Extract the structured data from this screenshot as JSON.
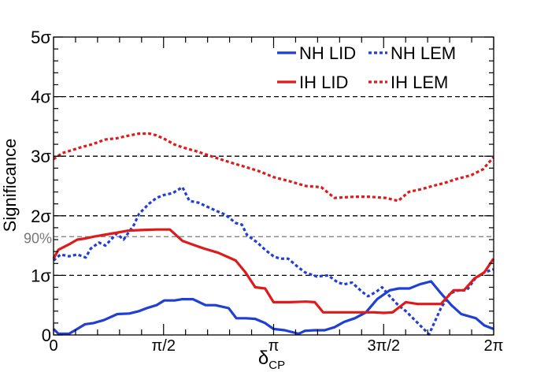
{
  "chart_data": {
    "type": "line",
    "ylabel": "Significance",
    "xlabel_main": "δ",
    "xlabel_sub": "CP",
    "xlim": [
      0,
      6.2832
    ],
    "ylim": [
      0,
      5
    ],
    "x_ticks": [
      {
        "value": 0,
        "label": "0"
      },
      {
        "value": 1.5708,
        "label": "π/2"
      },
      {
        "value": 3.1416,
        "label": "π"
      },
      {
        "value": 4.7124,
        "label": "3π/2"
      },
      {
        "value": 6.2832,
        "label": "2π"
      }
    ],
    "y_ticks": [
      {
        "value": 0,
        "label": "0"
      },
      {
        "value": 1,
        "label": "1σ"
      },
      {
        "value": 2,
        "label": "2σ"
      },
      {
        "value": 3,
        "label": "3σ"
      },
      {
        "value": 4,
        "label": "4σ"
      },
      {
        "value": 5,
        "label": "5σ"
      }
    ],
    "ref_lines": [
      {
        "y": 1,
        "color": "#000000",
        "label": ""
      },
      {
        "y": 2,
        "color": "#000000",
        "label": ""
      },
      {
        "y": 3,
        "color": "#000000",
        "label": ""
      },
      {
        "y": 4,
        "color": "#000000",
        "label": ""
      },
      {
        "y": 1.65,
        "color": "#777777",
        "label": "90%"
      }
    ],
    "legend": [
      {
        "name": "NH LID",
        "color": "#1f3fd6",
        "dashed": false
      },
      {
        "name": "NH LEM",
        "color": "#1f3fd6",
        "dashed": true
      },
      {
        "name": "IH LID",
        "color": "#e01a1a",
        "dashed": false
      },
      {
        "name": "IH LEM",
        "color": "#e01a1a",
        "dashed": true
      }
    ],
    "series": [
      {
        "name": "NH LID",
        "color": "#1f3fd6",
        "dashed": false,
        "x": [
          0,
          0.07,
          0.22,
          0.34,
          0.45,
          0.57,
          0.72,
          0.91,
          1.08,
          1.22,
          1.33,
          1.47,
          1.58,
          1.73,
          1.84,
          1.99,
          2.17,
          2.31,
          2.5,
          2.61,
          2.75,
          2.88,
          3.02,
          3.14,
          3.3,
          3.5,
          3.59,
          3.73,
          3.87,
          4.01,
          4.15,
          4.3,
          4.46,
          4.62,
          4.8,
          4.93,
          5.08,
          5.23,
          5.39,
          5.53,
          5.68,
          5.82,
          6.03,
          6.15,
          6.28
        ],
        "y": [
          0.1,
          0.02,
          0.02,
          0.1,
          0.18,
          0.2,
          0.25,
          0.35,
          0.36,
          0.4,
          0.45,
          0.5,
          0.58,
          0.58,
          0.6,
          0.6,
          0.5,
          0.5,
          0.45,
          0.28,
          0.28,
          0.27,
          0.2,
          0.1,
          0.08,
          0.02,
          0.07,
          0.08,
          0.08,
          0.13,
          0.22,
          0.28,
          0.38,
          0.6,
          0.75,
          0.78,
          0.78,
          0.85,
          0.9,
          0.7,
          0.5,
          0.35,
          0.28,
          0.16,
          0.1
        ]
      },
      {
        "name": "NH LEM",
        "color": "#1f3fd6",
        "dashed": true,
        "x": [
          0,
          0.1,
          0.22,
          0.34,
          0.46,
          0.53,
          0.65,
          0.74,
          0.9,
          1.0,
          1.15,
          1.22,
          1.36,
          1.47,
          1.58,
          1.7,
          1.84,
          1.94,
          2.07,
          2.2,
          2.33,
          2.45,
          2.6,
          2.69,
          2.76,
          2.91,
          3.02,
          3.14,
          3.23,
          3.35,
          3.48,
          3.59,
          3.76,
          3.92,
          4.06,
          4.15,
          4.26,
          4.41,
          4.49,
          4.6,
          4.69,
          4.8,
          4.92,
          5.03,
          5.2,
          5.36,
          5.53,
          5.66,
          5.79,
          5.9,
          6.02,
          6.15,
          6.28
        ],
        "y": [
          1.25,
          1.35,
          1.32,
          1.35,
          1.3,
          1.45,
          1.55,
          1.5,
          1.7,
          1.6,
          1.85,
          2.03,
          2.2,
          2.3,
          2.35,
          2.38,
          2.48,
          2.25,
          2.22,
          2.15,
          2.08,
          2.02,
          1.88,
          1.85,
          1.68,
          1.55,
          1.43,
          1.32,
          1.28,
          1.28,
          1.15,
          1.05,
          0.98,
          1.0,
          0.88,
          0.85,
          0.88,
          0.72,
          0.65,
          0.72,
          0.8,
          0.65,
          0.5,
          0.4,
          0.2,
          0.01,
          0.45,
          0.7,
          0.75,
          0.75,
          0.95,
          1.05,
          1.1
        ]
      },
      {
        "name": "IH LID",
        "color": "#e01a1a",
        "dashed": false,
        "x": [
          0,
          0.07,
          0.22,
          0.34,
          0.46,
          0.57,
          0.72,
          0.92,
          1.06,
          1.25,
          1.47,
          1.66,
          1.84,
          1.98,
          2.15,
          2.35,
          2.6,
          2.74,
          2.88,
          3.02,
          3.14,
          3.37,
          3.6,
          3.73,
          3.85,
          4.01,
          4.22,
          4.42,
          4.57,
          4.72,
          4.84,
          5.03,
          5.2,
          5.38,
          5.53,
          5.71,
          5.86,
          6.01,
          6.15,
          6.28
        ],
        "y": [
          1.28,
          1.43,
          1.52,
          1.6,
          1.62,
          1.65,
          1.68,
          1.72,
          1.75,
          1.76,
          1.77,
          1.77,
          1.58,
          1.52,
          1.45,
          1.38,
          1.25,
          1.05,
          0.8,
          0.78,
          0.55,
          0.55,
          0.56,
          0.55,
          0.38,
          0.38,
          0.38,
          0.38,
          0.38,
          0.37,
          0.38,
          0.55,
          0.52,
          0.52,
          0.52,
          0.75,
          0.75,
          0.95,
          1.05,
          1.28
        ]
      },
      {
        "name": "IH LEM",
        "color": "#e01a1a",
        "dashed": true,
        "x": [
          0,
          0.12,
          0.26,
          0.39,
          0.55,
          0.74,
          0.9,
          1.05,
          1.22,
          1.37,
          1.47,
          1.6,
          1.72,
          1.84,
          2.05,
          2.2,
          2.38,
          2.57,
          2.74,
          2.93,
          3.14,
          3.37,
          3.6,
          3.82,
          4.01,
          4.3,
          4.5,
          4.74,
          4.92,
          5.07,
          5.26,
          5.41,
          5.58,
          5.76,
          5.96,
          6.13,
          6.28
        ],
        "y": [
          2.95,
          3.05,
          3.1,
          3.15,
          3.2,
          3.28,
          3.3,
          3.34,
          3.38,
          3.38,
          3.35,
          3.28,
          3.2,
          3.15,
          3.08,
          3.02,
          2.95,
          2.88,
          2.82,
          2.75,
          2.65,
          2.58,
          2.5,
          2.48,
          2.3,
          2.32,
          2.32,
          2.3,
          2.25,
          2.4,
          2.45,
          2.5,
          2.55,
          2.62,
          2.68,
          2.78,
          2.98
        ]
      }
    ]
  }
}
